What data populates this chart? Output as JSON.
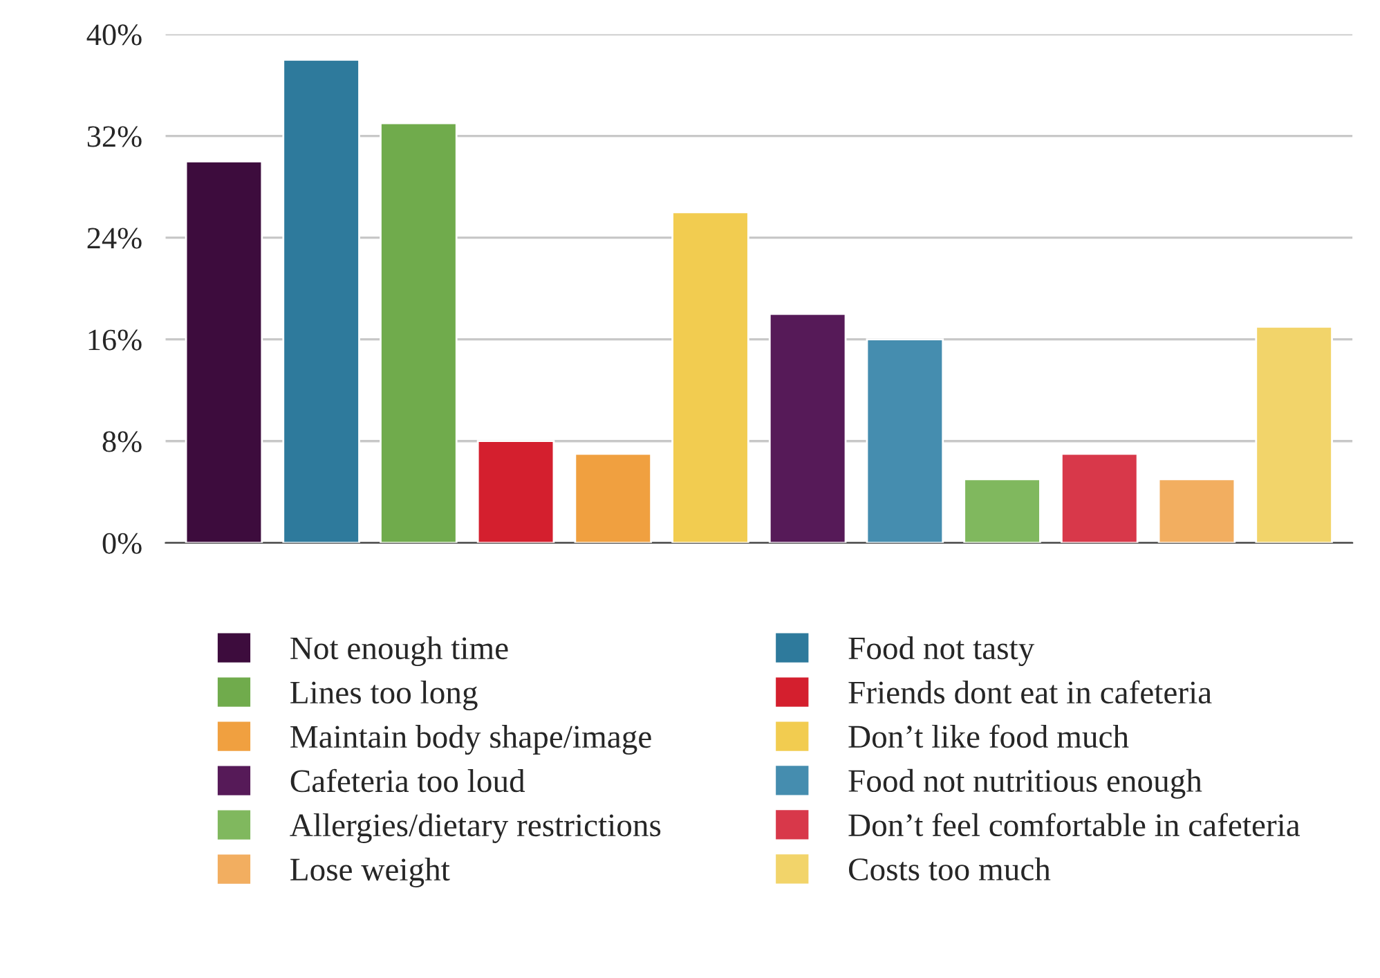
{
  "chart_data": {
    "type": "bar",
    "categories": [
      null,
      null,
      null,
      null,
      null,
      null,
      null,
      null,
      null,
      null,
      null,
      null
    ],
    "series": [
      {
        "name": "Not enough time",
        "color": "#3d0c3d",
        "values": [
          30,
          null,
          null,
          null,
          null,
          null,
          null,
          null,
          null,
          null,
          null,
          null
        ]
      },
      {
        "name": "Food not tasty",
        "color": "#2e7a9c",
        "values": [
          null,
          38,
          null,
          null,
          null,
          null,
          null,
          null,
          null,
          null,
          null,
          null
        ]
      },
      {
        "name": "Lines too long",
        "color": "#70ab4c",
        "values": [
          null,
          null,
          33,
          null,
          null,
          null,
          null,
          null,
          null,
          null,
          null,
          null
        ]
      },
      {
        "name": "Friends dont eat in cafeteria",
        "color": "#d41f2e",
        "values": [
          null,
          null,
          null,
          8,
          null,
          null,
          null,
          null,
          null,
          null,
          null,
          null
        ]
      },
      {
        "name": "Maintain body shape/image",
        "color": "#f0a040",
        "values": [
          null,
          null,
          null,
          null,
          7,
          null,
          null,
          null,
          null,
          null,
          null,
          null
        ]
      },
      {
        "name": "Don’t like food much",
        "color": "#f2cc50",
        "values": [
          null,
          null,
          null,
          null,
          null,
          26,
          null,
          null,
          null,
          null,
          null,
          null
        ]
      },
      {
        "name": "Cafeteria too loud",
        "color": "#561a58",
        "values": [
          null,
          null,
          null,
          null,
          null,
          null,
          18,
          null,
          null,
          null,
          null,
          null
        ]
      },
      {
        "name": "Food not nutritious enough",
        "color": "#458daf",
        "values": [
          null,
          null,
          null,
          null,
          null,
          null,
          null,
          16,
          null,
          null,
          null,
          null
        ]
      },
      {
        "name": "Allergies/dietary restrictions",
        "color": "#80b85e",
        "values": [
          null,
          null,
          null,
          null,
          null,
          null,
          null,
          null,
          5,
          null,
          null,
          null
        ]
      },
      {
        "name": "Don’t feel comfortable in cafeteria",
        "color": "#d8384a",
        "values": [
          null,
          null,
          null,
          null,
          null,
          null,
          null,
          null,
          null,
          7,
          null,
          null
        ]
      },
      {
        "name": "Lose weight",
        "color": "#f2ae60",
        "values": [
          null,
          null,
          null,
          null,
          null,
          null,
          null,
          null,
          null,
          null,
          5,
          null
        ]
      },
      {
        "name": "Costs too much",
        "color": "#f2d46a",
        "values": [
          null,
          null,
          null,
          null,
          null,
          null,
          null,
          null,
          null,
          null,
          null,
          17
        ]
      }
    ],
    "ylim": [
      0,
      40
    ],
    "yticks": [
      {
        "value": 0,
        "label": "0%"
      },
      {
        "value": 8,
        "label": "8%"
      },
      {
        "value": 16,
        "label": "16%"
      },
      {
        "value": 24,
        "label": "24%"
      },
      {
        "value": 32,
        "label": "32%"
      },
      {
        "value": 40,
        "label": "40%"
      }
    ],
    "grid": "y",
    "legend": "bottom"
  }
}
